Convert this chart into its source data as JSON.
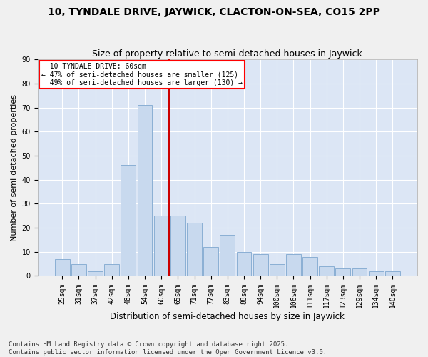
{
  "title": "10, TYNDALE DRIVE, JAYWICK, CLACTON-ON-SEA, CO15 2PP",
  "subtitle": "Size of property relative to semi-detached houses in Jaywick",
  "xlabel": "Distribution of semi-detached houses by size in Jaywick",
  "ylabel": "Number of semi-detached properties",
  "categories": [
    "25sqm",
    "31sqm",
    "37sqm",
    "42sqm",
    "48sqm",
    "54sqm",
    "60sqm",
    "65sqm",
    "71sqm",
    "77sqm",
    "83sqm",
    "88sqm",
    "94sqm",
    "100sqm",
    "106sqm",
    "111sqm",
    "117sqm",
    "123sqm",
    "129sqm",
    "134sqm",
    "140sqm"
  ],
  "values": [
    7,
    5,
    2,
    5,
    46,
    71,
    25,
    25,
    22,
    12,
    17,
    10,
    9,
    5,
    9,
    8,
    4,
    3,
    3,
    2,
    2
  ],
  "bar_color": "#c8d9ee",
  "bar_edge_color": "#8aafd4",
  "marker_index": 6,
  "marker_label": "10 TYNDALE DRIVE: 60sqm",
  "pct_smaller": "47%",
  "pct_smaller_n": 125,
  "pct_larger": "49%",
  "pct_larger_n": 130,
  "vline_color": "#cc0000",
  "ylim": [
    0,
    90
  ],
  "yticks": [
    0,
    10,
    20,
    30,
    40,
    50,
    60,
    70,
    80,
    90
  ],
  "bg_color": "#dce6f5",
  "grid_color": "#ffffff",
  "fig_bg_color": "#f0f0f0",
  "footer": "Contains HM Land Registry data © Crown copyright and database right 2025.\nContains public sector information licensed under the Open Government Licence v3.0.",
  "title_fontsize": 10,
  "subtitle_fontsize": 9,
  "xlabel_fontsize": 8.5,
  "ylabel_fontsize": 8,
  "tick_fontsize": 7,
  "footer_fontsize": 6.5
}
